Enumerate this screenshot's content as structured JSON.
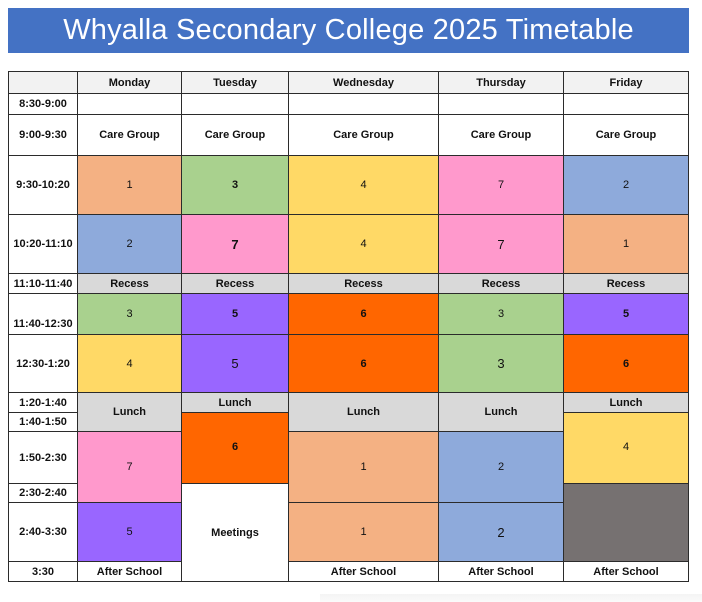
{
  "title": "Whyalla Secondary College 2025 Timetable",
  "days": [
    "Monday",
    "Tuesday",
    "Wednesday",
    "Thursday",
    "Friday"
  ],
  "times": [
    "8:30-9:00",
    "9:00-9:30",
    "9:30-10:20",
    "10:20-11:10",
    "11:10-11:40",
    "11:40-12:30",
    "12:30-1:20",
    "1:20-1:40",
    "1:40-1:50",
    "1:50-2:30",
    "2:30-2:40",
    "2:40-3:30",
    "3:30"
  ],
  "blocks": {
    "care_group": "Care Group",
    "recess": "Recess",
    "lunch": "Lunch",
    "meetings": "Meetings",
    "after_school": "After School"
  },
  "monday": [
    "1",
    "2",
    "3",
    "4",
    "7",
    "5"
  ],
  "tuesday": [
    "3",
    "7",
    "5",
    "5",
    "6"
  ],
  "wednesday": [
    "4",
    "4",
    "6",
    "6",
    "1",
    "1"
  ],
  "thursday": [
    "7",
    "7",
    "3",
    "3",
    "2",
    "2"
  ],
  "friday": [
    "2",
    "1",
    "5",
    "6",
    "4"
  ],
  "colors": {
    "1": "#f4b183",
    "2": "#8eaadb",
    "3": "#a9d18e",
    "4": "#ffd966",
    "5": "#9966ff",
    "6": "#ff6600",
    "7": "#ff99cc",
    "title_bar": "#4472c4",
    "break": "#d9d9d9",
    "blank": "#767171"
  }
}
